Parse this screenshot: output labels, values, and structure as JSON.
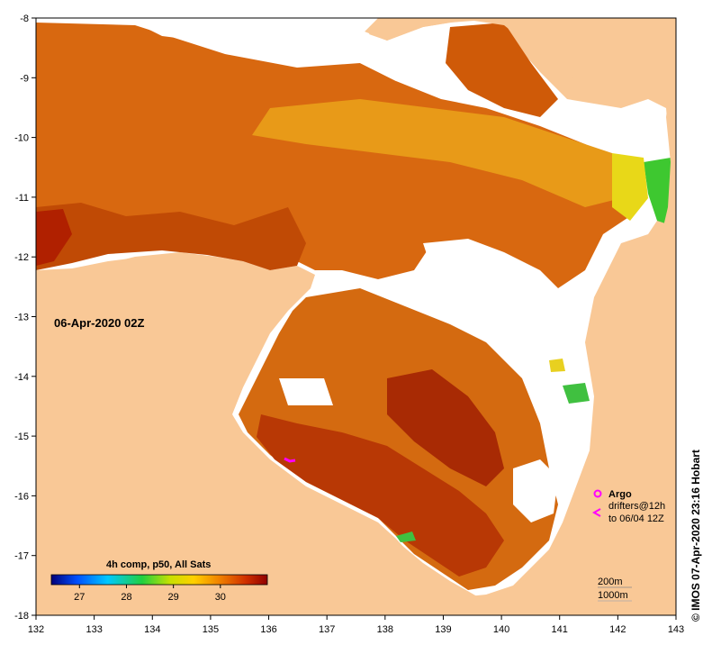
{
  "timestamp_label": "06-Apr-2020 02Z",
  "credit": "© IMOS 07-Apr-2020 23:16 Hobart",
  "colorbar": {
    "title": "4h comp, p50, All Sats",
    "ticks": [
      "27",
      "28",
      "29",
      "30"
    ],
    "tick_values": [
      27,
      28,
      29,
      30
    ],
    "range": [
      26.4,
      31.0
    ]
  },
  "legend": {
    "argo_label": "Argo",
    "drifters_line1": "drifters@12h",
    "drifters_line2": "to 06/04 12Z",
    "argo_color": "#ff00ff",
    "drifter_color": "#ff00ff"
  },
  "depth_legend": {
    "line1": "200m",
    "line2": "1000m"
  },
  "axes": {
    "x_ticks": [
      "132",
      "133",
      "134",
      "135",
      "136",
      "137",
      "138",
      "139",
      "140",
      "141",
      "142",
      "143"
    ],
    "y_ticks": [
      "-8",
      "-9",
      "-10",
      "-11",
      "-12",
      "-13",
      "-14",
      "-15",
      "-16",
      "-17",
      "-18"
    ],
    "lon_range": [
      132,
      143
    ],
    "lat_range": [
      -18,
      -8
    ]
  },
  "colors": {
    "land": "#f9c896",
    "no_data": "#ffffff",
    "sst_dark": "#b41e00",
    "sst_mid": "#d8600a",
    "sst_light": "#e8900e"
  }
}
